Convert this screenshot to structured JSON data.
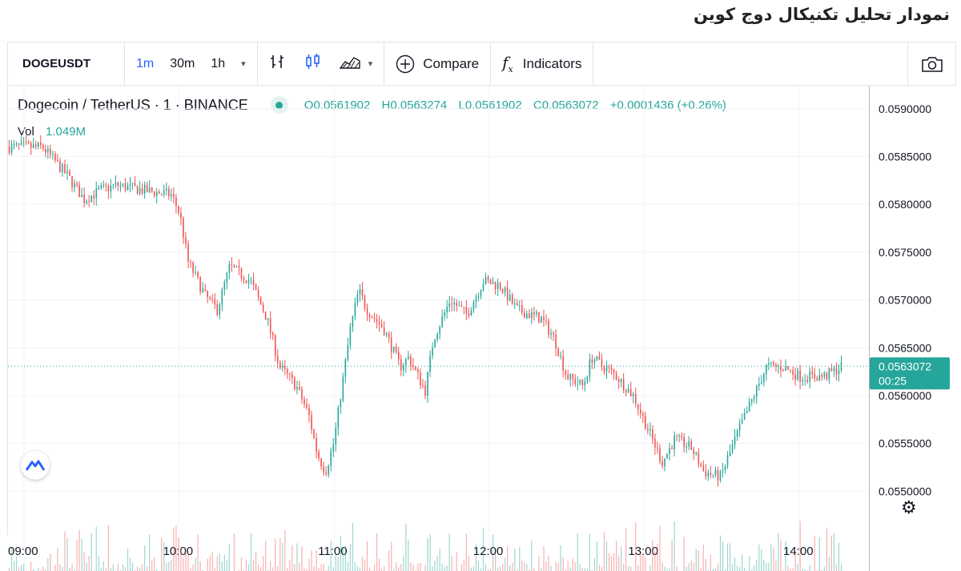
{
  "page_title": "نمودار تحلیل تکنیکال دوج کوین",
  "toolbar": {
    "symbol": "DOGEUSDT",
    "intervals": [
      {
        "label": "1m",
        "active": true
      },
      {
        "label": "30m",
        "active": false
      },
      {
        "label": "1h",
        "active": false
      }
    ],
    "compare_label": "Compare",
    "indicators_label": "Indicators",
    "icons": [
      "bar-chart-icon",
      "candlestick-icon",
      "area-chart-icon",
      "chevron-down-icon",
      "plus-circle-icon",
      "fx-icon",
      "camera-icon"
    ]
  },
  "legend": {
    "title": "Dogecoin / TetherUS · 1 · BINANCE",
    "open": "O0.0561902",
    "high": "H0.0563274",
    "low": "L0.0561902",
    "close": "C0.0563072",
    "change": "+0.0001436 (+0.26%)",
    "vol_label": "Vol",
    "vol_value": "1.049M"
  },
  "colors": {
    "up": "#26a69a",
    "down": "#ef5350",
    "grid": "#f0f3fa",
    "price_tag": "#26a69a"
  },
  "chart_data": {
    "type": "candlestick",
    "x_ticks": [
      "09:00",
      "10:00",
      "11:00",
      "12:00",
      "13:00",
      "14:00"
    ],
    "y_ticks": [
      "0.0590000",
      "0.0585000",
      "0.0580000",
      "0.0575000",
      "0.0570000",
      "0.0565000",
      "0.0560000",
      "0.0555000",
      "0.0550000"
    ],
    "ylim": [
      0.05455,
      0.0592
    ],
    "last_price": "0.0563072",
    "last_price_value": 0.0563072,
    "countdown": "00:25",
    "approx_close_path": [
      [
        0,
        0.0586
      ],
      [
        0.04,
        0.0586
      ],
      [
        0.07,
        0.0583
      ],
      [
        0.09,
        0.05805
      ],
      [
        0.11,
        0.05815
      ],
      [
        0.13,
        0.0582
      ],
      [
        0.16,
        0.05815
      ],
      [
        0.195,
        0.0581
      ],
      [
        0.205,
        0.0579
      ],
      [
        0.215,
        0.0574
      ],
      [
        0.235,
        0.05705
      ],
      [
        0.25,
        0.0569
      ],
      [
        0.265,
        0.05735
      ],
      [
        0.29,
        0.0572
      ],
      [
        0.31,
        0.0568
      ],
      [
        0.325,
        0.0563
      ],
      [
        0.345,
        0.0561
      ],
      [
        0.36,
        0.0558
      ],
      [
        0.37,
        0.0554
      ],
      [
        0.38,
        0.0552
      ],
      [
        0.39,
        0.0555
      ],
      [
        0.4,
        0.0561
      ],
      [
        0.41,
        0.0567
      ],
      [
        0.42,
        0.0571
      ],
      [
        0.43,
        0.0569
      ],
      [
        0.45,
        0.0567
      ],
      [
        0.47,
        0.0563
      ],
      [
        0.48,
        0.0564
      ],
      [
        0.5,
        0.05605
      ],
      [
        0.51,
        0.0566
      ],
      [
        0.53,
        0.057
      ],
      [
        0.55,
        0.05685
      ],
      [
        0.57,
        0.0572
      ],
      [
        0.59,
        0.05715
      ],
      [
        0.61,
        0.0569
      ],
      [
        0.64,
        0.0568
      ],
      [
        0.655,
        0.0566
      ],
      [
        0.67,
        0.0562
      ],
      [
        0.69,
        0.0561
      ],
      [
        0.7,
        0.0564
      ],
      [
        0.73,
        0.0562
      ],
      [
        0.75,
        0.056
      ],
      [
        0.765,
        0.0557
      ],
      [
        0.785,
        0.0553
      ],
      [
        0.8,
        0.05555
      ],
      [
        0.82,
        0.05545
      ],
      [
        0.835,
        0.0552
      ],
      [
        0.855,
        0.05515
      ],
      [
        0.875,
        0.0556
      ],
      [
        0.895,
        0.056
      ],
      [
        0.91,
        0.0563
      ],
      [
        0.93,
        0.0563
      ],
      [
        0.95,
        0.0562
      ],
      [
        0.98,
        0.0562
      ],
      [
        1.0,
        0.0563
      ]
    ]
  }
}
